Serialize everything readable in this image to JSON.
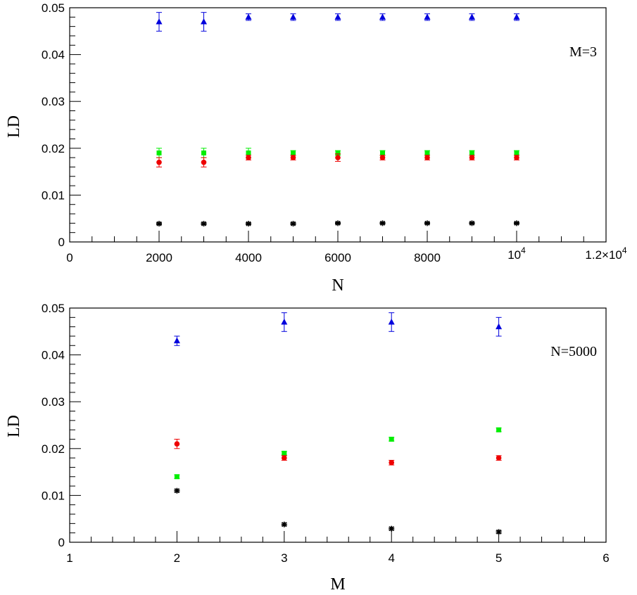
{
  "chart_data": [
    {
      "type": "scatter",
      "title": "",
      "xlabel": "N",
      "ylabel": "LD",
      "annotation": "M=3",
      "xlim": [
        0,
        12000
      ],
      "ylim": [
        0,
        0.05
      ],
      "x_ticks": [
        0,
        2000,
        4000,
        6000,
        8000,
        10000,
        12000
      ],
      "x_tick_labels": [
        "0",
        "2000",
        "4000",
        "6000",
        "8000",
        "10^4",
        "1.2×10^4"
      ],
      "y_ticks": [
        0,
        0.01,
        0.02,
        0.03,
        0.04,
        0.05
      ],
      "y_tick_labels": [
        "0",
        "0.01",
        "0.02",
        "0.03",
        "0.04",
        "0.05"
      ],
      "x": [
        2000,
        3000,
        4000,
        5000,
        6000,
        7000,
        8000,
        9000,
        10000
      ],
      "series": [
        {
          "marker": "triangle",
          "color": "#0000dd",
          "values": [
            0.047,
            0.047,
            0.048,
            0.048,
            0.048,
            0.048,
            0.048,
            0.048,
            0.048
          ],
          "errors": [
            0.002,
            0.002,
            0.0007,
            0.0007,
            0.0007,
            0.0007,
            0.0007,
            0.0007,
            0.0007
          ]
        },
        {
          "marker": "square",
          "color": "#00ee00",
          "values": [
            0.019,
            0.019,
            0.019,
            0.019,
            0.019,
            0.019,
            0.019,
            0.019,
            0.019
          ],
          "errors": [
            0.001,
            0.001,
            0.001,
            0.0005,
            0.0005,
            0.0005,
            0.0005,
            0.0005,
            0.0005
          ]
        },
        {
          "marker": "circle",
          "color": "#ee0000",
          "values": [
            0.017,
            0.017,
            0.018,
            0.018,
            0.018,
            0.018,
            0.018,
            0.018,
            0.018
          ],
          "errors": [
            0.001,
            0.001,
            0.0005,
            0.0005,
            0.0008,
            0.0005,
            0.0005,
            0.0005,
            0.0005
          ]
        },
        {
          "marker": "star",
          "color": "#000000",
          "values": [
            0.0039,
            0.0039,
            0.0039,
            0.0039,
            0.004,
            0.004,
            0.004,
            0.004,
            0.004
          ],
          "errors": [
            0.0002,
            0.0002,
            0.0002,
            0.0002,
            0.0002,
            0.0002,
            0.0002,
            0.0002,
            0.0002
          ]
        }
      ]
    },
    {
      "type": "scatter",
      "title": "",
      "xlabel": "M",
      "ylabel": "LD",
      "annotation": "N=5000",
      "xlim": [
        1,
        6
      ],
      "ylim": [
        0,
        0.05
      ],
      "x_ticks": [
        1,
        2,
        3,
        4,
        5,
        6
      ],
      "x_tick_labels": [
        "1",
        "2",
        "3",
        "4",
        "5",
        "6"
      ],
      "y_ticks": [
        0,
        0.01,
        0.02,
        0.03,
        0.04,
        0.05
      ],
      "y_tick_labels": [
        "0",
        "0.01",
        "0.02",
        "0.03",
        "0.04",
        "0.05"
      ],
      "x": [
        2,
        3,
        4,
        5
      ],
      "series": [
        {
          "marker": "triangle",
          "color": "#0000dd",
          "values": [
            0.043,
            0.047,
            0.047,
            0.046
          ],
          "errors": [
            0.001,
            0.002,
            0.002,
            0.002
          ]
        },
        {
          "marker": "square",
          "color": "#00ee00",
          "values": [
            0.014,
            0.019,
            0.022,
            0.024
          ],
          "errors": [
            0.0004,
            0.0004,
            0.0004,
            0.0004
          ]
        },
        {
          "marker": "circle",
          "color": "#ee0000",
          "values": [
            0.021,
            0.018,
            0.017,
            0.018
          ],
          "errors": [
            0.001,
            0.0005,
            0.0005,
            0.0005
          ]
        },
        {
          "marker": "star",
          "color": "#000000",
          "values": [
            0.011,
            0.0038,
            0.0029,
            0.0022
          ],
          "errors": [
            0.0003,
            0.0003,
            0.0003,
            0.0003
          ]
        }
      ]
    }
  ]
}
